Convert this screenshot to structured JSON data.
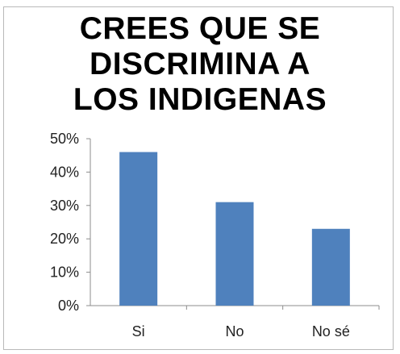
{
  "chart_data": {
    "type": "bar",
    "title_lines": [
      "CREES QUE SE",
      "DISCRIMINA A",
      "LOS INDIGENAS"
    ],
    "categories": [
      "Si",
      "No",
      "No sé"
    ],
    "values": [
      46,
      31,
      23
    ],
    "value_unit": "%",
    "y_ticks": [
      "0%",
      "10%",
      "20%",
      "30%",
      "40%",
      "50%"
    ],
    "ylim": [
      0,
      50
    ],
    "xlabel": "",
    "ylabel": "",
    "grid": false,
    "legend": "none",
    "bar_color": "#4f81bd",
    "axis_color": "#8c8c8c"
  }
}
